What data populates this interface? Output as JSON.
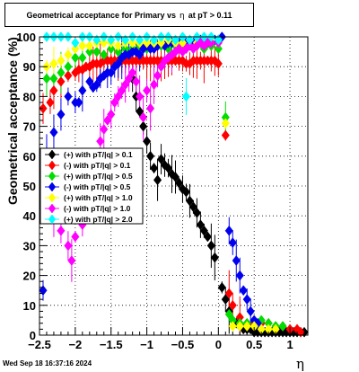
{
  "title": {
    "prefix": "Geometrical acceptance for Primary vs",
    "symbol": "η",
    "suffix": "at pT > 0.11"
  },
  "footer_timestamp": "Wed Sep 18 16:37:16 2024",
  "chart_data": {
    "type": "scatter",
    "xlabel": "η",
    "ylabel": "Geometrical acceptance (%)",
    "xlim": [
      -2.5,
      1.25
    ],
    "ylim": [
      0,
      100
    ],
    "xticks": [
      "−2.5",
      "−2",
      "−1.5",
      "−1",
      "−0.5",
      "0",
      "0.5",
      "1"
    ],
    "yticks": [
      "0",
      "10",
      "20",
      "30",
      "40",
      "50",
      "60",
      "70",
      "80",
      "90",
      "100"
    ],
    "grid": true,
    "legend_position": "middle-left",
    "series": [
      {
        "name": "(+) with pT/|q| > 0.1",
        "color": "#000000",
        "points": [
          [
            -1.2,
            86
          ],
          [
            -1.15,
            80
          ],
          [
            -1.1,
            75
          ],
          [
            -1.05,
            70
          ],
          [
            -1.0,
            65
          ],
          [
            -0.95,
            60
          ],
          [
            -0.9,
            56
          ],
          [
            -0.85,
            52
          ],
          [
            -0.8,
            59
          ],
          [
            -0.75,
            57
          ],
          [
            -0.7,
            56
          ],
          [
            -0.65,
            54
          ],
          [
            -0.6,
            53
          ],
          [
            -0.55,
            51
          ],
          [
            -0.5,
            49
          ],
          [
            -0.45,
            48
          ],
          [
            -0.4,
            45
          ],
          [
            -0.35,
            43
          ],
          [
            -0.3,
            41
          ],
          [
            -0.25,
            37
          ],
          [
            -0.2,
            35
          ],
          [
            -0.15,
            33
          ],
          [
            -0.1,
            30
          ],
          [
            -0.05,
            26
          ],
          [
            0.05,
            16
          ],
          [
            0.1,
            12
          ],
          [
            0.15,
            8
          ],
          [
            0.2,
            5
          ],
          [
            0.25,
            4
          ],
          [
            0.3,
            3
          ],
          [
            0.35,
            2
          ],
          [
            0.4,
            2
          ],
          [
            0.45,
            2
          ],
          [
            0.5,
            1
          ],
          [
            0.55,
            1
          ],
          [
            0.6,
            1
          ],
          [
            0.65,
            1
          ],
          [
            0.7,
            1
          ],
          [
            0.75,
            1
          ],
          [
            0.8,
            1
          ],
          [
            0.85,
            1
          ],
          [
            0.9,
            1
          ],
          [
            0.95,
            1
          ],
          [
            1.0,
            1
          ],
          [
            1.05,
            1
          ],
          [
            1.1,
            1
          ],
          [
            1.15,
            1
          ],
          [
            1.2,
            1
          ]
        ]
      },
      {
        "name": "(-) with pT/|q| > 0.1",
        "color": "#ff0000",
        "points": [
          [
            -2.45,
            76
          ],
          [
            -2.35,
            78
          ],
          [
            -2.3,
            82
          ],
          [
            -2.2,
            85
          ],
          [
            -2.1,
            87
          ],
          [
            -2.0,
            88
          ],
          [
            -1.95,
            89
          ],
          [
            -1.9,
            89
          ],
          [
            -1.85,
            90
          ],
          [
            -1.8,
            90
          ],
          [
            -1.75,
            91
          ],
          [
            -1.7,
            91
          ],
          [
            -1.65,
            91
          ],
          [
            -1.6,
            92
          ],
          [
            -1.55,
            92
          ],
          [
            -1.5,
            92
          ],
          [
            -1.45,
            92
          ],
          [
            -1.4,
            92
          ],
          [
            -1.35,
            92
          ],
          [
            -1.3,
            92
          ],
          [
            -1.25,
            92
          ],
          [
            -1.2,
            92
          ],
          [
            -1.15,
            92
          ],
          [
            -1.1,
            92
          ],
          [
            -1.05,
            92
          ],
          [
            -1.0,
            92
          ],
          [
            -0.95,
            92
          ],
          [
            -0.9,
            92
          ],
          [
            -0.85,
            92
          ],
          [
            -0.8,
            92
          ],
          [
            -0.75,
            92
          ],
          [
            -0.7,
            92
          ],
          [
            -0.65,
            92
          ],
          [
            -0.6,
            92
          ],
          [
            -0.55,
            92
          ],
          [
            -0.5,
            92
          ],
          [
            -0.45,
            91
          ],
          [
            -0.4,
            91
          ],
          [
            -0.35,
            92
          ],
          [
            -0.3,
            92
          ],
          [
            -0.25,
            92
          ],
          [
            -0.2,
            92
          ],
          [
            -0.15,
            92
          ],
          [
            -0.1,
            92
          ],
          [
            -0.05,
            92
          ],
          [
            0.0,
            91
          ],
          [
            0.1,
            67
          ],
          [
            0.15,
            14
          ],
          [
            0.2,
            10
          ],
          [
            0.3,
            6
          ],
          [
            0.4,
            4
          ],
          [
            0.5,
            4
          ],
          [
            0.6,
            4
          ],
          [
            0.7,
            4
          ],
          [
            0.8,
            3
          ],
          [
            0.9,
            3
          ],
          [
            1.0,
            2
          ],
          [
            1.1,
            2
          ],
          [
            1.15,
            1
          ]
        ]
      },
      {
        "name": "(+) with pT/|q| > 0.5",
        "color": "#00dd00",
        "points": [
          [
            -2.4,
            86
          ],
          [
            -2.3,
            86
          ],
          [
            -2.2,
            88
          ],
          [
            -2.1,
            90
          ],
          [
            -2.0,
            93
          ],
          [
            -1.9,
            93
          ],
          [
            -1.8,
            95
          ],
          [
            -1.7,
            95
          ],
          [
            -1.6,
            94
          ],
          [
            -1.5,
            96
          ],
          [
            -1.4,
            95
          ],
          [
            -1.3,
            96
          ],
          [
            -1.2,
            96
          ],
          [
            -1.1,
            97
          ],
          [
            -1.0,
            96
          ],
          [
            -0.9,
            97
          ],
          [
            -0.8,
            97
          ],
          [
            -0.7,
            96
          ],
          [
            -0.6,
            97
          ],
          [
            -0.5,
            97
          ],
          [
            -0.4,
            97
          ],
          [
            -0.3,
            97
          ],
          [
            -0.2,
            96
          ],
          [
            -0.1,
            97
          ],
          [
            0.0,
            96
          ],
          [
            0.1,
            73
          ],
          [
            0.15,
            7
          ],
          [
            0.2,
            5
          ],
          [
            0.3,
            4
          ],
          [
            0.4,
            4
          ],
          [
            0.5,
            5
          ],
          [
            0.6,
            5
          ],
          [
            0.7,
            4
          ],
          [
            0.8,
            3
          ],
          [
            0.9,
            3
          ]
        ]
      },
      {
        "name": "(-) with pT/|q| > 0.5",
        "color": "#0000ee",
        "points": [
          [
            -2.45,
            15
          ],
          [
            -2.4,
            60
          ],
          [
            -2.3,
            68
          ],
          [
            -2.2,
            74
          ],
          [
            -2.1,
            80
          ],
          [
            -2.0,
            78
          ],
          [
            -1.95,
            78
          ],
          [
            -1.9,
            82
          ],
          [
            -1.8,
            85
          ],
          [
            -1.75,
            83
          ],
          [
            -1.7,
            84
          ],
          [
            -1.65,
            86
          ],
          [
            -1.6,
            87
          ],
          [
            -1.55,
            88
          ],
          [
            -1.5,
            88
          ],
          [
            -1.45,
            90
          ],
          [
            -1.4,
            91
          ],
          [
            -1.35,
            93
          ],
          [
            -1.3,
            94
          ],
          [
            -1.25,
            94
          ],
          [
            -1.2,
            95
          ],
          [
            -1.15,
            95
          ],
          [
            -1.1,
            94
          ],
          [
            -1.05,
            96
          ],
          [
            -1.0,
            97
          ],
          [
            -0.95,
            96
          ],
          [
            -0.9,
            96
          ],
          [
            -0.85,
            97
          ],
          [
            -0.8,
            98
          ],
          [
            -0.75,
            97
          ],
          [
            -0.7,
            98
          ],
          [
            -0.65,
            98
          ],
          [
            -0.6,
            98
          ],
          [
            -0.55,
            98
          ],
          [
            -0.5,
            97
          ],
          [
            -0.45,
            98
          ],
          [
            -0.4,
            99
          ],
          [
            -0.35,
            98
          ],
          [
            -0.3,
            99
          ],
          [
            -0.25,
            99
          ],
          [
            -0.2,
            99
          ],
          [
            -0.15,
            98
          ],
          [
            -0.1,
            99
          ],
          [
            -0.05,
            99
          ],
          [
            0.0,
            99
          ],
          [
            0.05,
            100
          ],
          [
            0.15,
            35
          ],
          [
            0.2,
            31
          ],
          [
            0.25,
            25
          ],
          [
            0.3,
            20
          ],
          [
            0.35,
            15
          ],
          [
            0.4,
            12
          ],
          [
            0.45,
            8
          ],
          [
            0.5,
            5
          ],
          [
            0.55,
            4
          ]
        ]
      },
      {
        "name": "(+) with pT/|q| > 1.0",
        "color": "#ffff00",
        "points": [
          [
            -2.4,
            90
          ],
          [
            -2.3,
            91
          ],
          [
            -2.2,
            92
          ],
          [
            -2.1,
            94
          ],
          [
            -2.0,
            96
          ],
          [
            -1.9,
            97
          ],
          [
            -1.8,
            97
          ],
          [
            -1.7,
            98
          ],
          [
            -1.6,
            98
          ],
          [
            -1.5,
            98
          ],
          [
            -1.4,
            97
          ],
          [
            -1.3,
            98
          ],
          [
            -1.2,
            98
          ],
          [
            -1.1,
            98
          ],
          [
            -1.0,
            98
          ],
          [
            -0.9,
            98
          ],
          [
            -0.8,
            98
          ],
          [
            -0.7,
            99
          ],
          [
            -0.6,
            98
          ],
          [
            -0.5,
            98
          ],
          [
            -0.4,
            99
          ],
          [
            -0.3,
            98
          ],
          [
            -0.2,
            98
          ],
          [
            -0.1,
            99
          ],
          [
            0.0,
            98
          ],
          [
            0.1,
            71
          ],
          [
            0.2,
            3
          ],
          [
            0.3,
            3
          ],
          [
            0.4,
            3
          ],
          [
            0.5,
            3
          ],
          [
            0.6,
            2
          ],
          [
            0.7,
            2
          ],
          [
            0.8,
            2
          ]
        ]
      },
      {
        "name": "(-) with pT/|q| > 1.0",
        "color": "#ff00ff",
        "points": [
          [
            -2.4,
            45
          ],
          [
            -2.3,
            39
          ],
          [
            -2.2,
            35
          ],
          [
            -2.1,
            30
          ],
          [
            -2.05,
            25
          ],
          [
            -2.0,
            33
          ],
          [
            -1.9,
            37
          ],
          [
            -1.85,
            41
          ],
          [
            -1.8,
            48
          ],
          [
            -1.75,
            55
          ],
          [
            -1.7,
            60
          ],
          [
            -1.65,
            65
          ],
          [
            -1.6,
            69
          ],
          [
            -1.55,
            72
          ],
          [
            -1.5,
            74
          ],
          [
            -1.45,
            78
          ],
          [
            -1.4,
            80
          ],
          [
            -1.35,
            82
          ],
          [
            -1.3,
            84
          ],
          [
            -1.25,
            86
          ],
          [
            -1.2,
            88
          ],
          [
            -1.15,
            85
          ],
          [
            -1.1,
            80
          ],
          [
            -1.05,
            73
          ],
          [
            -1.0,
            82
          ],
          [
            -0.95,
            76
          ],
          [
            -0.9,
            84
          ],
          [
            -0.85,
            87
          ],
          [
            -0.8,
            90
          ],
          [
            -0.75,
            92
          ],
          [
            -0.7,
            93
          ],
          [
            -0.65,
            94
          ],
          [
            -0.6,
            95
          ],
          [
            -0.55,
            96
          ],
          [
            -0.5,
            95
          ],
          [
            -0.45,
            96
          ],
          [
            -0.4,
            97
          ],
          [
            -0.35,
            96
          ],
          [
            -0.3,
            97
          ],
          [
            -0.25,
            98
          ],
          [
            -0.2,
            97
          ],
          [
            -0.15,
            98
          ],
          [
            -0.1,
            98
          ],
          [
            0.0,
            98
          ]
        ]
      },
      {
        "name": "(+) with pT/|q| > 2.0",
        "color": "#00ffff",
        "points": [
          [
            -2.4,
            100
          ],
          [
            -2.3,
            100
          ],
          [
            -2.2,
            100
          ],
          [
            -2.1,
            100
          ],
          [
            -2.0,
            98
          ],
          [
            -1.9,
            100
          ],
          [
            -1.8,
            100
          ],
          [
            -1.7,
            99
          ],
          [
            -1.6,
            100
          ],
          [
            -1.5,
            99
          ],
          [
            -1.4,
            100
          ],
          [
            -1.3,
            99
          ],
          [
            -1.2,
            100
          ],
          [
            -1.1,
            99
          ],
          [
            -1.0,
            100
          ],
          [
            -0.9,
            99
          ],
          [
            -0.8,
            100
          ],
          [
            -0.7,
            100
          ],
          [
            -0.6,
            99
          ],
          [
            -0.5,
            100
          ],
          [
            -0.45,
            80
          ],
          [
            -0.4,
            99
          ],
          [
            -0.3,
            100
          ],
          [
            -0.2,
            100
          ],
          [
            -0.1,
            100
          ],
          [
            0.0,
            99
          ]
        ]
      }
    ]
  }
}
